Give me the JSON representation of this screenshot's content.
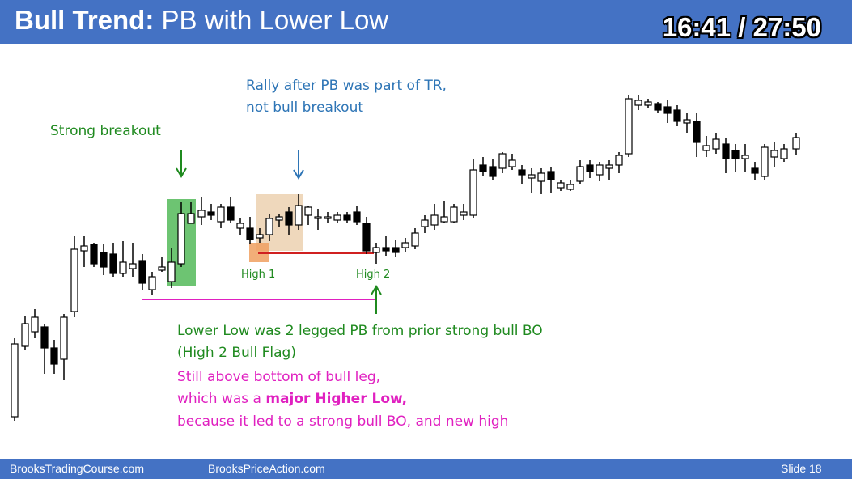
{
  "header": {
    "title_bold": "Bull Trend:",
    "title_rest": " PB with Lower Low",
    "timer": "16:41 / 27:50"
  },
  "annotations": {
    "strong_breakout": "Strong breakout",
    "rally_line1": "Rally after PB was part of TR,",
    "rally_line2": "not bull breakout",
    "high1": "High 1",
    "high2": "High 2",
    "lower_low_line1": "Lower Low was 2 legged PB from prior strong bull BO",
    "lower_low_line2": "(High 2 Bull Flag)",
    "still_above": "Still above bottom of bull leg,",
    "which_was_prefix": "which was a ",
    "which_was_bold": "major Higher Low,",
    "because": "because it led to a strong bull BO, and new high"
  },
  "footer": {
    "left": "BrooksTradingCourse.com",
    "middle": "BrooksPriceAction.com",
    "right": "Slide  18"
  },
  "colors": {
    "header_bg": "#4472c4",
    "green_text": "#1f8a1f",
    "blue_text": "#2e75b6",
    "pink_text": "#e020c0",
    "red_line": "#d02020",
    "green_box": "#3cb043",
    "tan_box": "#e8c8a0",
    "orange_box": "#f0a060"
  }
}
